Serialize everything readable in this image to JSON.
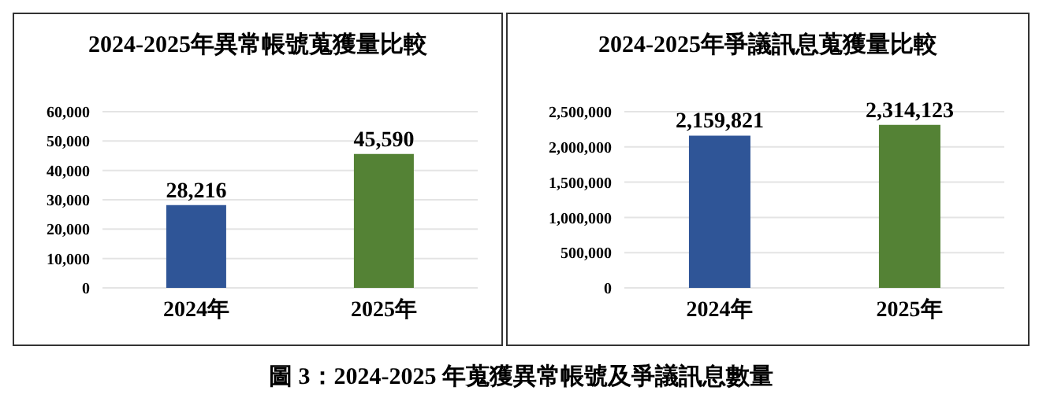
{
  "chart_data": [
    {
      "type": "bar",
      "title": "2024-2025年異常帳號蒐獲量比較",
      "categories": [
        "2024年",
        "2025年"
      ],
      "values": [
        28216,
        45590
      ],
      "value_labels": [
        "28,216",
        "45,590"
      ],
      "colors": [
        "#2f5597",
        "#548235"
      ],
      "ylim": [
        0,
        60000
      ],
      "yticks": [
        {
          "value": 0,
          "label": "0"
        },
        {
          "value": 10000,
          "label": "10,000"
        },
        {
          "value": 20000,
          "label": "20,000"
        },
        {
          "value": 30000,
          "label": "30,000"
        },
        {
          "value": 40000,
          "label": "40,000"
        },
        {
          "value": 50000,
          "label": "50,000"
        },
        {
          "value": 60000,
          "label": "60,000"
        }
      ],
      "grid": "y",
      "legend": false,
      "annotations": [
        "圖 3：2024-2025 年蒐獲異常帳號及爭議訊息數量"
      ]
    },
    {
      "type": "bar",
      "title": "2024-2025年爭議訊息蒐獲量比較",
      "categories": [
        "2024年",
        "2025年"
      ],
      "values": [
        2159821,
        2314123
      ],
      "value_labels": [
        "2,159,821",
        "2,314,123"
      ],
      "colors": [
        "#2f5597",
        "#548235"
      ],
      "ylim": [
        0,
        2500000
      ],
      "yticks": [
        {
          "value": 0,
          "label": "0"
        },
        {
          "value": 500000,
          "label": "500,000"
        },
        {
          "value": 1000000,
          "label": "1,000,000"
        },
        {
          "value": 1500000,
          "label": "1,500,000"
        },
        {
          "value": 2000000,
          "label": "2,000,000"
        },
        {
          "value": 2500000,
          "label": "2,500,000"
        }
      ],
      "grid": "y",
      "legend": false
    }
  ]
}
